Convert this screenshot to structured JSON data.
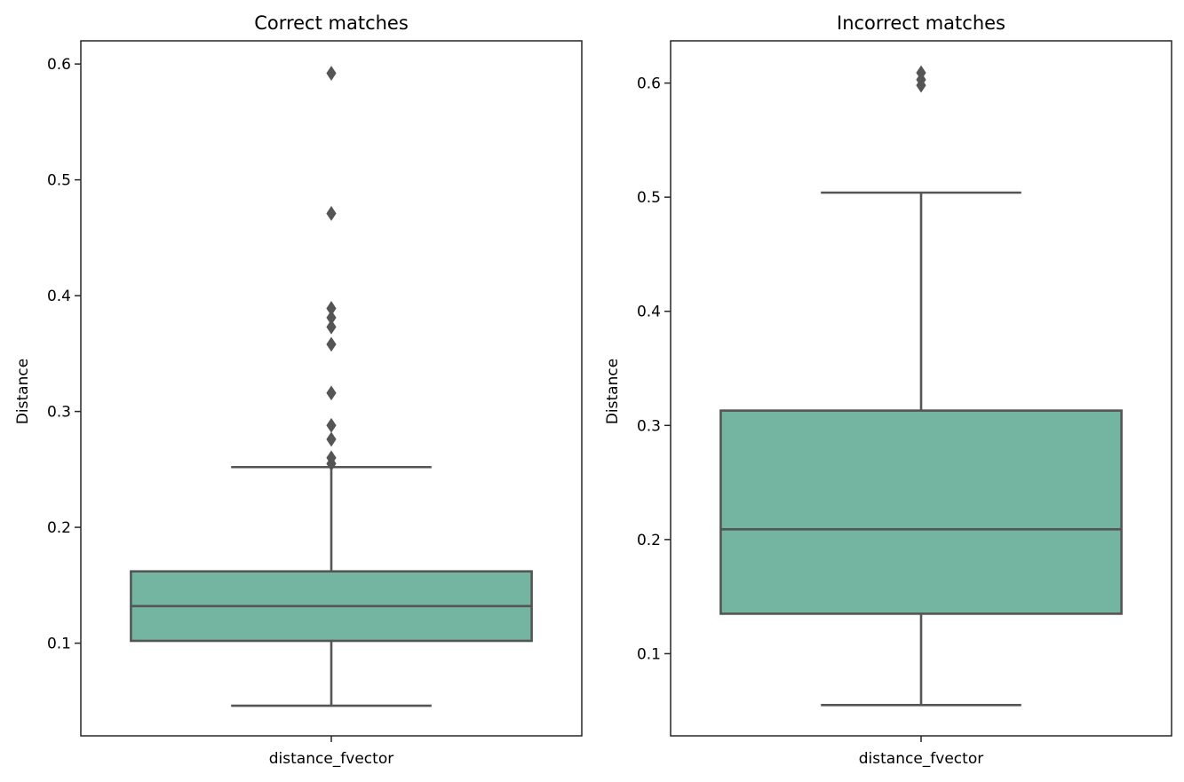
{
  "chart_data": [
    {
      "type": "box",
      "title": "Correct matches",
      "xlabel": "",
      "ylabel": "Distance",
      "categories": [
        "distance_fvector"
      ],
      "ylim": [
        0.02,
        0.62
      ],
      "yticks": [
        0.1,
        0.2,
        0.3,
        0.4,
        0.5,
        0.6
      ],
      "box": {
        "whisker_low": 0.046,
        "q1": 0.102,
        "median": 0.132,
        "q3": 0.162,
        "whisker_high": 0.252
      },
      "outliers": [
        0.592,
        0.471,
        0.389,
        0.381,
        0.373,
        0.358,
        0.316,
        0.288,
        0.276,
        0.26,
        0.255
      ],
      "box_color": "#73b5a1",
      "line_color": "#555555",
      "grid": false,
      "legend": "none"
    },
    {
      "type": "box",
      "title": "Incorrect matches",
      "xlabel": "",
      "ylabel": "Distance",
      "categories": [
        "distance_fvector"
      ],
      "ylim": [
        0.028,
        0.637
      ],
      "yticks": [
        0.1,
        0.2,
        0.3,
        0.4,
        0.5,
        0.6
      ],
      "box": {
        "whisker_low": 0.055,
        "q1": 0.135,
        "median": 0.209,
        "q3": 0.313,
        "whisker_high": 0.504
      },
      "outliers": [
        0.609,
        0.603,
        0.598
      ],
      "box_color": "#73b5a1",
      "line_color": "#555555",
      "grid": false,
      "legend": "none"
    }
  ]
}
